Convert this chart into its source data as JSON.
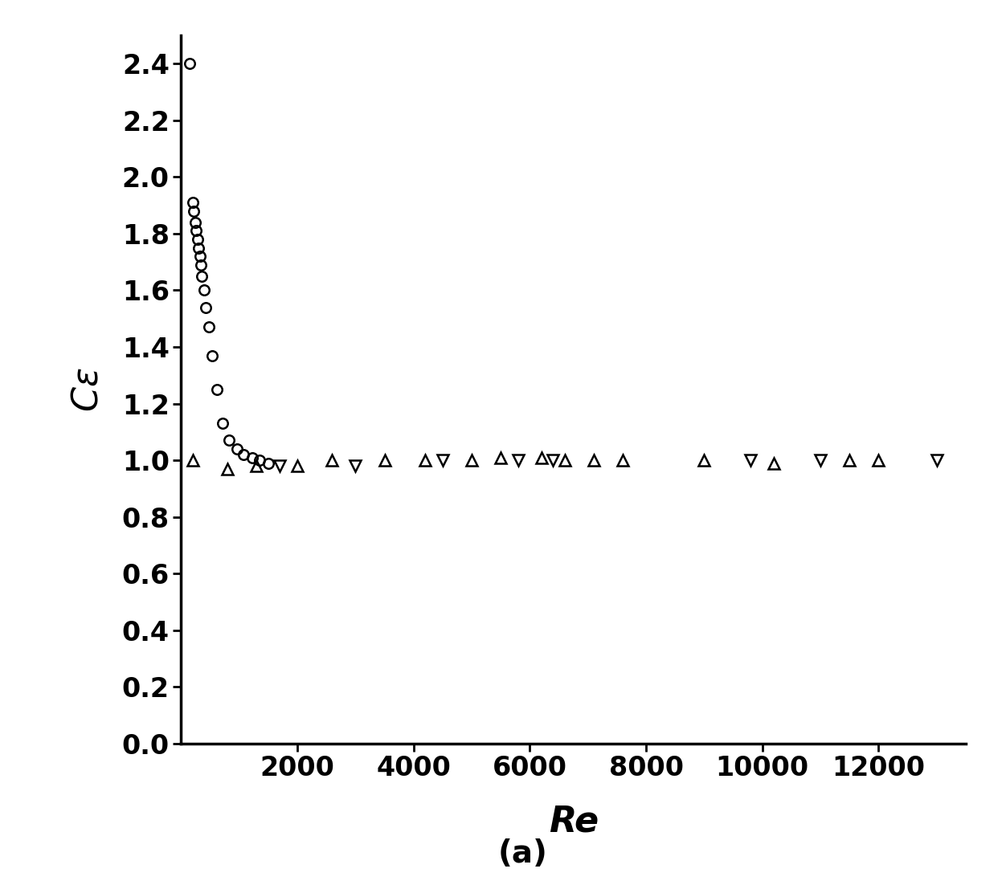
{
  "circles_x": [
    150,
    200,
    220,
    240,
    260,
    280,
    300,
    320,
    340,
    360,
    390,
    430,
    480,
    540,
    620,
    720,
    830,
    960,
    1080,
    1220,
    1350,
    1500
  ],
  "circles_y": [
    2.4,
    1.91,
    1.88,
    1.84,
    1.81,
    1.78,
    1.75,
    1.72,
    1.69,
    1.65,
    1.6,
    1.54,
    1.47,
    1.37,
    1.25,
    1.13,
    1.07,
    1.04,
    1.02,
    1.01,
    1.0,
    0.99
  ],
  "up_tri_x": [
    200,
    800,
    1300,
    2000,
    2600,
    3500,
    4200,
    5000,
    5500,
    6200,
    6600,
    7100,
    7600,
    9000,
    10200,
    11500,
    12000
  ],
  "up_tri_y": [
    1.0,
    0.97,
    0.98,
    0.98,
    1.0,
    1.0,
    1.0,
    1.0,
    1.01,
    1.01,
    1.0,
    1.0,
    1.0,
    1.0,
    0.99,
    1.0,
    1.0
  ],
  "down_tri_x": [
    1700,
    3000,
    4500,
    5800,
    6400,
    9800,
    11000,
    13000
  ],
  "down_tri_y": [
    0.98,
    0.98,
    1.0,
    1.0,
    1.0,
    1.0,
    1.0,
    1.0
  ],
  "xlim": [
    0,
    13500
  ],
  "ylim": [
    0.0,
    2.5
  ],
  "xticks": [
    2000,
    4000,
    6000,
    8000,
    10000,
    12000
  ],
  "yticks": [
    0.0,
    0.2,
    0.4,
    0.6,
    0.8,
    1.0,
    1.2,
    1.4,
    1.6,
    1.8,
    2.0,
    2.2,
    2.4
  ],
  "xlabel": "Re",
  "ylabel": "Cε",
  "caption": "(a)",
  "marker_size": 9,
  "linewidth": 1.8,
  "font_size": 24,
  "label_font_size": 32,
  "caption_font_size": 28
}
